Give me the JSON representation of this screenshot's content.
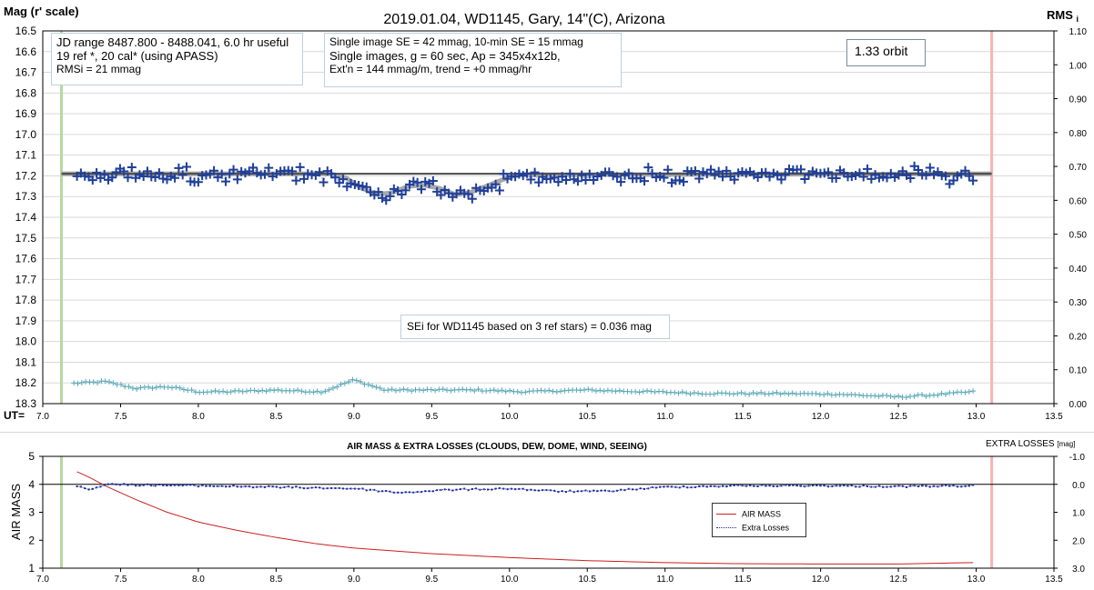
{
  "chart_data": [
    {
      "type": "scatter",
      "title": "2019.01.04, WD1145, Gary, 14\"(C), Arizona",
      "ylabel": "Mag (r' scale)",
      "y2label": "RMS i",
      "xlabel_prefix": "UT=",
      "xlim": [
        7.0,
        13.5
      ],
      "ylim": [
        18.3,
        16.5
      ],
      "y2lim": [
        0.0,
        1.1
      ],
      "x_ticks": [
        "7.0",
        "7.5",
        "8.0",
        "8.5",
        "9.0",
        "9.5",
        "10.0",
        "10.5",
        "11.0",
        "11.5",
        "12.0",
        "12.5",
        "13.0",
        "13.5"
      ],
      "y_ticks": [
        "16.5",
        "16.6",
        "16.7",
        "16.8",
        "16.9",
        "17.0",
        "17.1",
        "17.2",
        "17.3",
        "17.4",
        "17.5",
        "17.6",
        "17.7",
        "17.8",
        "17.9",
        "18.0",
        "18.1",
        "18.2",
        "18.3"
      ],
      "y2_ticks": [
        "0.00",
        "0.10",
        "0.20",
        "0.30",
        "0.40",
        "0.50",
        "0.60",
        "0.70",
        "0.80",
        "0.90",
        "1.00",
        "1.10"
      ],
      "vertical_markers": [
        {
          "x": 7.12,
          "color": "#b5d9a0"
        },
        {
          "x": 13.1,
          "color": "#f4b4b4"
        }
      ],
      "annotations": {
        "box1": [
          "JD range 8487.800 - 8488.041, 6.0 hr useful",
          "19 ref *, 20 cal* (using APASS)",
          "RMSi = 21 mmag"
        ],
        "box2": [
          "Single image SE = 42 mmag, 10-min SE = 15 mmag",
          "Single images, g = 60 sec, Ap = 345x4x12b,",
          "Ext'n = 144 mmag/m, trend = +0 mmag/hr"
        ],
        "orbit": "1.33 orbit",
        "sei": "SEi for WD1145 based on 3 ref stars) = 0.036 mag"
      },
      "series": [
        {
          "name": "model",
          "color": "#a9a9a9",
          "x": [
            7.12,
            8.85,
            8.95,
            9.05,
            9.15,
            9.25,
            9.35,
            9.45,
            9.55,
            9.65,
            9.75,
            9.85,
            9.95,
            10.05,
            13.1
          ],
          "y": [
            17.19,
            17.19,
            17.21,
            17.26,
            17.29,
            17.28,
            17.25,
            17.245,
            17.26,
            17.29,
            17.28,
            17.25,
            17.22,
            17.195,
            17.19
          ]
        },
        {
          "name": "trend",
          "color": "#4a4a4a",
          "x": [
            7.12,
            13.1
          ],
          "y": [
            17.19,
            17.19
          ]
        },
        {
          "name": "magnitude",
          "color": "#1f3f99",
          "point_count": 230,
          "x_range": [
            7.22,
            12.98
          ],
          "mean": 17.2,
          "scatter": 0.04
        },
        {
          "name": "rms",
          "color": "#5aa8b8",
          "axis": "y2",
          "x": [
            7.2,
            7.4,
            7.6,
            7.8,
            8.0,
            8.2,
            8.5,
            8.8,
            9.0,
            9.2,
            9.5,
            9.8,
            10.1,
            10.5,
            10.9,
            11.3,
            11.7,
            12.1,
            12.5,
            12.7,
            12.98
          ],
          "y": [
            0.06,
            0.065,
            0.045,
            0.05,
            0.035,
            0.035,
            0.04,
            0.035,
            0.07,
            0.04,
            0.04,
            0.04,
            0.035,
            0.04,
            0.035,
            0.03,
            0.03,
            0.028,
            0.02,
            0.025,
            0.035
          ]
        }
      ]
    },
    {
      "type": "line",
      "title": "AIR MASS & EXTRA LOSSES (CLOUDS, DEW, DOME, WIND, SEEING)",
      "ylabel": "AIR MASS",
      "y2label": "EXTRA LOSSES",
      "y2unit": "[mag]",
      "xlim": [
        7.0,
        13.5
      ],
      "ylim": [
        1,
        5
      ],
      "y2lim": [
        3.0,
        -1.0
      ],
      "x_ticks": [
        "7.0",
        "7.5",
        "8.0",
        "8.5",
        "9.0",
        "9.5",
        "10.0",
        "10.5",
        "11.0",
        "11.5",
        "12.0",
        "12.5",
        "13.0",
        "13.5"
      ],
      "y_ticks": [
        "1",
        "2",
        "3",
        "4",
        "5"
      ],
      "y2_ticks": [
        "-1.0",
        "0.0",
        "1.0",
        "2.0",
        "3.0"
      ],
      "vertical_markers": [
        {
          "x": 7.12,
          "color": "#b5d9a0"
        },
        {
          "x": 13.1,
          "color": "#f4b4b4"
        }
      ],
      "legend": {
        "placement": "right",
        "entries": [
          "AIR MASS",
          "Extra Losses"
        ]
      },
      "series": [
        {
          "name": "AIR MASS",
          "color": "#cc1f1f",
          "axis": "y",
          "x": [
            7.22,
            7.3,
            7.4,
            7.5,
            7.6,
            7.8,
            8.0,
            8.25,
            8.5,
            8.75,
            9.0,
            9.5,
            10.0,
            10.5,
            11.0,
            11.5,
            12.0,
            12.5,
            12.98
          ],
          "y": [
            4.45,
            4.25,
            3.95,
            3.7,
            3.45,
            3.0,
            2.65,
            2.35,
            2.1,
            1.88,
            1.72,
            1.52,
            1.38,
            1.27,
            1.2,
            1.16,
            1.15,
            1.15,
            1.2
          ]
        },
        {
          "name": "Extra Losses",
          "color": "#1a2aa0",
          "axis": "y2",
          "x": [
            7.22,
            7.3,
            7.4,
            7.6,
            8.0,
            8.5,
            9.0,
            9.3,
            9.6,
            10.0,
            10.3,
            10.6,
            11.0,
            11.5,
            12.0,
            12.5,
            12.98
          ],
          "y": [
            0.05,
            0.2,
            0.0,
            0.02,
            0.05,
            0.1,
            0.15,
            0.3,
            0.2,
            0.15,
            0.25,
            0.25,
            0.1,
            0.05,
            0.05,
            0.08,
            0.05
          ]
        }
      ]
    }
  ]
}
